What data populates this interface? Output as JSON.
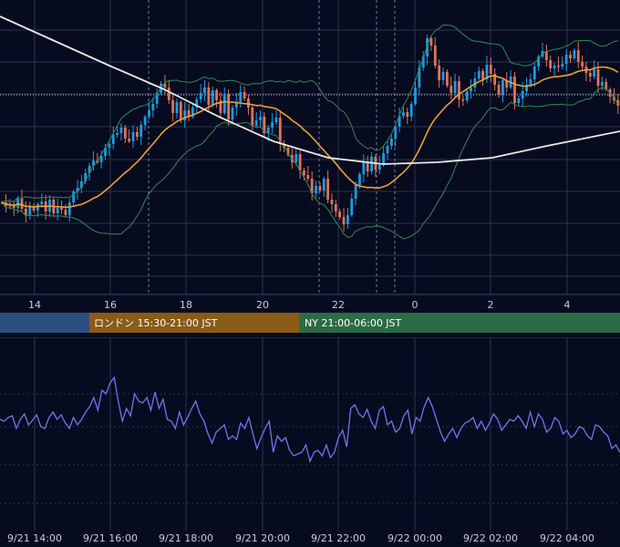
{
  "colors": {
    "background": "#060b1f",
    "grid": "#2a3350",
    "candle_up": "#1e9be0",
    "candle_down": "#e0735a",
    "bollinger": "#2e8b57",
    "ma_short": "#f0a030",
    "ma_long": "#e8e8e8",
    "oscillator": "#6a78f0",
    "session_tokyo": "#2b4f7e",
    "session_london": "#8a5a17",
    "session_ny": "#2c6b45"
  },
  "chart_data": [
    {
      "type": "candlestick",
      "x_ticks": [
        "14",
        "16",
        "18",
        "20",
        "22",
        "0",
        "2",
        "4"
      ],
      "grid": true,
      "overlays": [
        "bollinger-bands",
        "moving-average-short",
        "moving-average-long"
      ],
      "close_series_approx": [
        222,
        226,
        225,
        228,
        218,
        229,
        236,
        227,
        231,
        224,
        221,
        232,
        219,
        234,
        228,
        230,
        236,
        222,
        210,
        206,
        199,
        190,
        182,
        176,
        178,
        171,
        162,
        158,
        148,
        146,
        140,
        152,
        155,
        145,
        150,
        137,
        128,
        121,
        114,
        102,
        92,
        96,
        110,
        124,
        112,
        132,
        121,
        128,
        118,
        109,
        102,
        96,
        115,
        99,
        110,
        124,
        103,
        131,
        118,
        112,
        101,
        108,
        118,
        138,
        132,
        128,
        146,
        140,
        134,
        129,
        158,
        162,
        170,
        178,
        169,
        187,
        192,
        196,
        212,
        204,
        209,
        196,
        219,
        224,
        232,
        238,
        246,
        236,
        218,
        203,
        191,
        178,
        188,
        172,
        186,
        181,
        168,
        160,
        152,
        139,
        127,
        123,
        128,
        114,
        96,
        74,
        62,
        42,
        50,
        72,
        88,
        79,
        94,
        102,
        89,
        109,
        110,
        100,
        96,
        86,
        78,
        87,
        71,
        81,
        93,
        104,
        88,
        96,
        84,
        113,
        108,
        100,
        93,
        87,
        73,
        62,
        56,
        66,
        75,
        72,
        73,
        70,
        60,
        64,
        55,
        68,
        73,
        80,
        84,
        76,
        94,
        90,
        98,
        106,
        110,
        116
      ]
    },
    {
      "type": "line",
      "x_ticks": [
        "9/21 14:00",
        "9/21 16:00",
        "9/21 18:00",
        "9/21 20:00",
        "9/21 22:00",
        "9/22 00:00",
        "9/22 02:00",
        "9/22 04:00"
      ],
      "grid": true,
      "series": [
        {
          "values": [
            460,
            462,
            458,
            456,
            470,
            460,
            454,
            466,
            461,
            455,
            468,
            470,
            458,
            452,
            460,
            455,
            464,
            470,
            458,
            466,
            460,
            452,
            446,
            436,
            450,
            428,
            432,
            420,
            414,
            440,
            462,
            448,
            456,
            432,
            440,
            442,
            436,
            450,
            430,
            448,
            438,
            460,
            462,
            470,
            452,
            466,
            458,
            448,
            440,
            454,
            462,
            476,
            486,
            474,
            470,
            466,
            482,
            478,
            482,
            464,
            470,
            458,
            476,
            492,
            480,
            470,
            462,
            496,
            478,
            484,
            480,
            494,
            500,
            498,
            496,
            488,
            506,
            496,
            494,
            500,
            488,
            502,
            496,
            480,
            472,
            490,
            448,
            444,
            454,
            458,
            449,
            462,
            470,
            450,
            446,
            466,
            462,
            474,
            470,
            456,
            450,
            476,
            458,
            462,
            446,
            436,
            446,
            460,
            474,
            484,
            476,
            470,
            480,
            470,
            464,
            462,
            458,
            470,
            462,
            472,
            464,
            454,
            460,
            472,
            466,
            460,
            462,
            456,
            462,
            470,
            452,
            468,
            454,
            460,
            474,
            470,
            458,
            462,
            476,
            472,
            480,
            476,
            468,
            470,
            478,
            482,
            466,
            468,
            474,
            478,
            492,
            488,
            496
          ]
        }
      ]
    }
  ],
  "sessions": [
    {
      "label": ""
    },
    {
      "label": "ロンドン 15:30-21:00 JST"
    },
    {
      "label": "NY 21:00-06:00 JST"
    }
  ]
}
